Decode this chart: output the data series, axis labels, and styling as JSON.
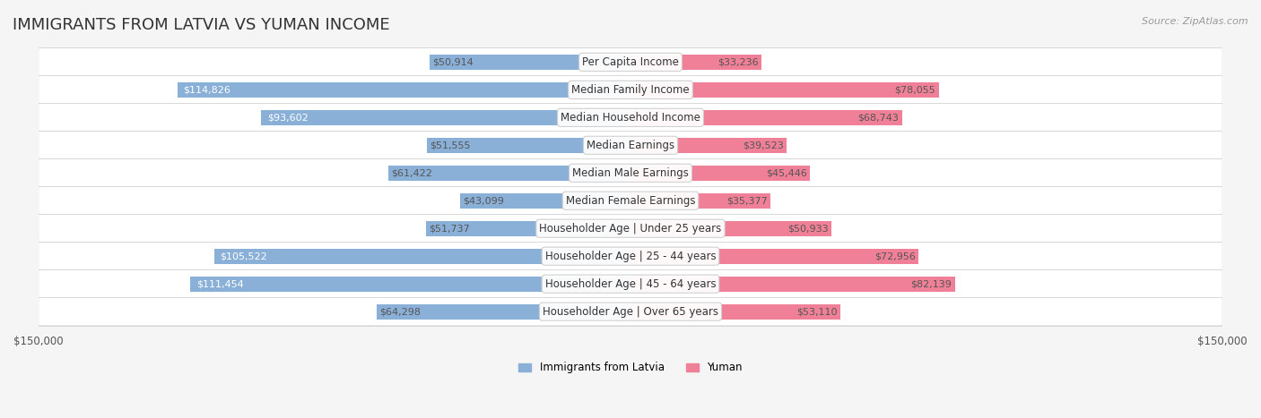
{
  "title": "IMMIGRANTS FROM LATVIA VS YUMAN INCOME",
  "source": "Source: ZipAtlas.com",
  "categories": [
    "Per Capita Income",
    "Median Family Income",
    "Median Household Income",
    "Median Earnings",
    "Median Male Earnings",
    "Median Female Earnings",
    "Householder Age | Under 25 years",
    "Householder Age | 25 - 44 years",
    "Householder Age | 45 - 64 years",
    "Householder Age | Over 65 years"
  ],
  "latvia_values": [
    50914,
    114826,
    93602,
    51555,
    61422,
    43099,
    51737,
    105522,
    111454,
    64298
  ],
  "yuman_values": [
    33236,
    78055,
    68743,
    39523,
    45446,
    35377,
    50933,
    72956,
    82139,
    53110
  ],
  "latvia_color": "#8ab0d8",
  "yuman_color": "#f08098",
  "latvia_label": "Immigrants from Latvia",
  "yuman_label": "Yuman",
  "max_val": 150000,
  "background_color": "#f5f5f5",
  "row_bg_color": "#ffffff",
  "bar_height": 0.55,
  "label_fontsize": 8.5,
  "value_fontsize": 8.0,
  "title_fontsize": 13,
  "axis_label_fontsize": 8.5
}
